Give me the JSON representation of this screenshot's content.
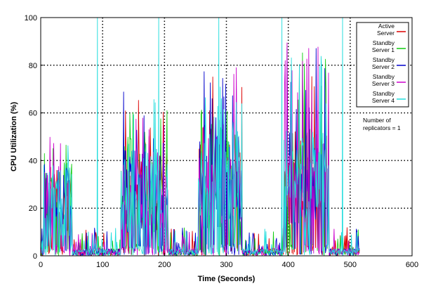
{
  "chart_data": {
    "type": "line",
    "title": "",
    "xlabel": "Time (Seconds)",
    "ylabel": "CPU Utilization (%)",
    "xlim": [
      0,
      600
    ],
    "ylim": [
      0,
      100
    ],
    "xticks": [
      0,
      100,
      200,
      300,
      400,
      500,
      600
    ],
    "yticks": [
      0,
      20,
      40,
      60,
      80,
      100
    ],
    "grid": "dotted",
    "legend_position": "top-right",
    "annotation": [
      "Number of",
      "replicators = 1"
    ],
    "series": [
      {
        "name": "Active Server",
        "label_lines": [
          "Active",
          "Server"
        ],
        "color": "#dd0000",
        "bursts": [
          [
            5,
            45,
            28,
            20
          ],
          [
            130,
            75,
            32,
            40
          ],
          [
            255,
            70,
            36,
            50
          ],
          [
            393,
            72,
            38,
            60
          ]
        ]
      },
      {
        "name": "Standby Server 1",
        "label_lines": [
          "Standby",
          "Server 1"
        ],
        "color": "#11cc11",
        "bursts": [
          [
            5,
            45,
            28,
            20
          ],
          [
            130,
            75,
            32,
            40
          ],
          [
            255,
            70,
            36,
            50
          ],
          [
            393,
            72,
            38,
            60
          ]
        ]
      },
      {
        "name": "Standby Server 2",
        "label_lines": [
          "Standby",
          "Server 2"
        ],
        "color": "#0000cc",
        "bursts": [
          [
            5,
            45,
            28,
            20
          ],
          [
            130,
            75,
            32,
            40
          ],
          [
            255,
            70,
            36,
            50
          ],
          [
            393,
            72,
            38,
            60
          ]
        ]
      },
      {
        "name": "Standby Server 3",
        "label_lines": [
          "Standby",
          "Server 3"
        ],
        "color": "#cc00cc",
        "bursts": [
          [
            5,
            45,
            28,
            20
          ],
          [
            130,
            75,
            32,
            40
          ],
          [
            255,
            70,
            36,
            50
          ],
          [
            393,
            72,
            38,
            60
          ]
        ]
      },
      {
        "name": "Standby Server 4",
        "label_lines": [
          "Standby",
          "Server 4"
        ],
        "color": "#22dddd",
        "bursts": [
          [
            5,
            45,
            28,
            20
          ],
          [
            130,
            75,
            32,
            40
          ],
          [
            255,
            70,
            36,
            50
          ],
          [
            393,
            72,
            38,
            60
          ]
        ],
        "spikes": [
          92,
          191,
          288,
          390,
          488
        ]
      }
    ]
  }
}
